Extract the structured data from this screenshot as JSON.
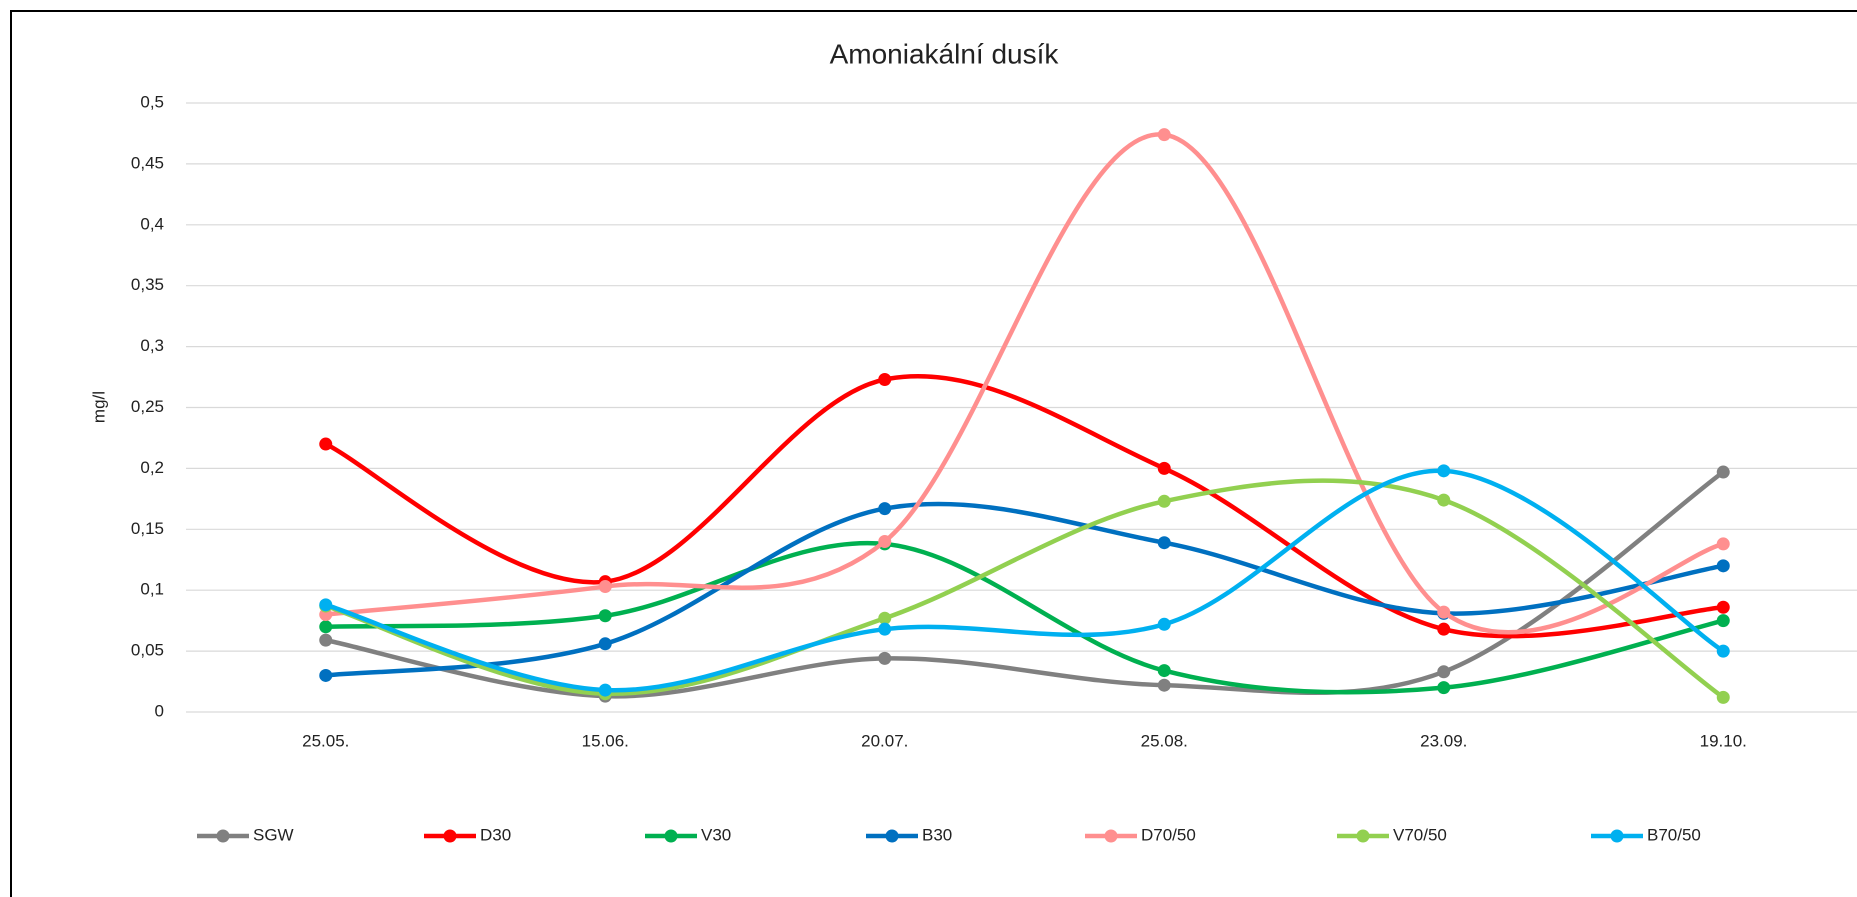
{
  "chart_data": {
    "type": "line",
    "title": "Amoniakální dusík",
    "y_label": "mg/l",
    "categories": [
      "25.05.",
      "15.06.",
      "20.07.",
      "25.08.",
      "23.09.",
      "19.10."
    ],
    "series": [
      {
        "name": "SGW",
        "color": "#808080",
        "values": [
          0.059,
          0.013,
          0.044,
          0.022,
          0.033,
          0.197
        ]
      },
      {
        "name": "D30",
        "color": "#ff0000",
        "values": [
          0.22,
          0.107,
          0.273,
          0.2,
          0.068,
          0.086
        ]
      },
      {
        "name": "V30",
        "color": "#00b050",
        "values": [
          0.07,
          0.079,
          0.138,
          0.034,
          0.02,
          0.075
        ]
      },
      {
        "name": "B30",
        "color": "#0070c0",
        "values": [
          0.03,
          0.056,
          0.167,
          0.139,
          0.081,
          0.12
        ]
      },
      {
        "name": "D70/50",
        "color": "#ff8f8f",
        "values": [
          0.08,
          0.103,
          0.14,
          0.474,
          0.082,
          0.138
        ]
      },
      {
        "name": "V70/50",
        "color": "#92d050",
        "values": [
          0.087,
          0.015,
          0.077,
          0.173,
          0.174,
          0.012
        ]
      },
      {
        "name": "B70/50",
        "color": "#00b0f0",
        "values": [
          0.088,
          0.018,
          0.068,
          0.072,
          0.198,
          0.05
        ]
      }
    ],
    "ylim": [
      0,
      0.5
    ],
    "yticks": [
      0,
      {
        "value": 0.05,
        "label": "0,05"
      },
      {
        "value": 0.1,
        "label": "0,1"
      },
      {
        "value": 0.15,
        "label": "0,15"
      },
      {
        "value": 0.2,
        "label": "0,2"
      },
      {
        "value": 0.25,
        "label": "0,25"
      },
      {
        "value": 0.3,
        "label": "0,3"
      },
      {
        "value": 0.35,
        "label": "0,35"
      },
      {
        "value": 0.4,
        "label": "0,4"
      },
      {
        "value": 0.45,
        "label": "0,45"
      },
      {
        "value": 0.5,
        "label": "0,5"
      }
    ],
    "grid": true,
    "smooth": true,
    "legend": "bottom"
  }
}
